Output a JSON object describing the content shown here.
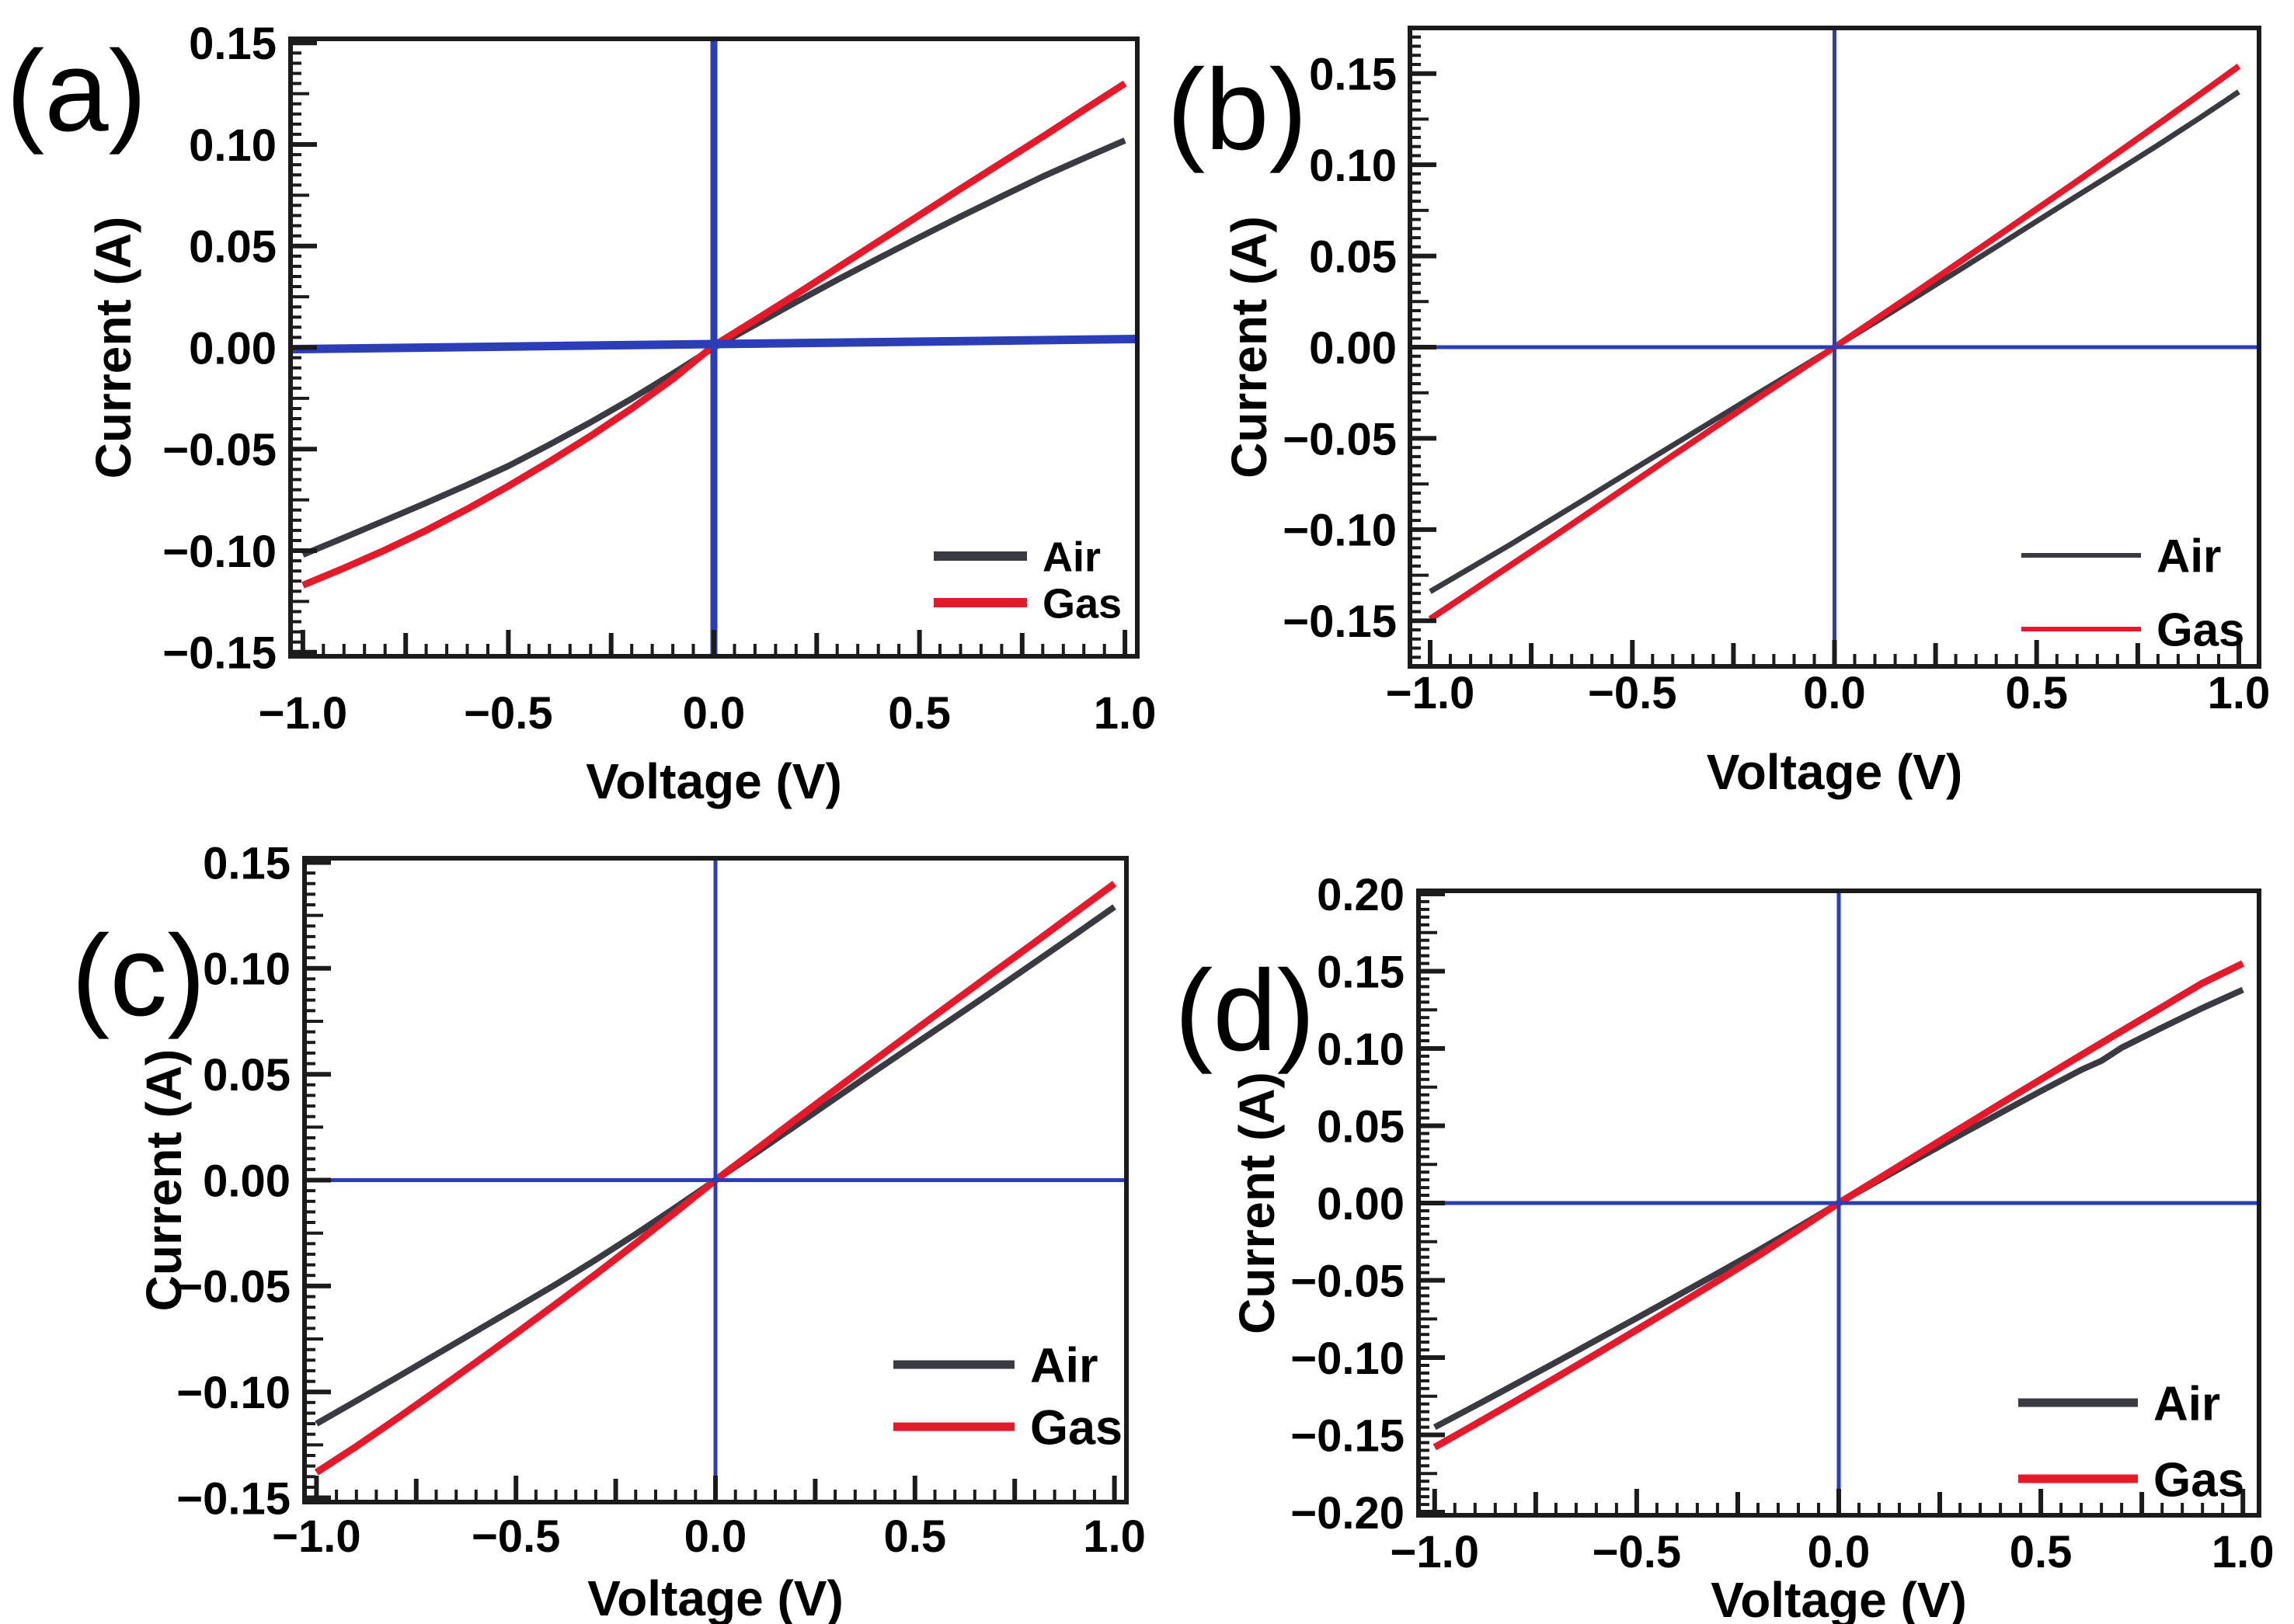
{
  "figure": {
    "background": "#ffffff",
    "colors": {
      "air": "#3a3a43",
      "gas": "#e6192b",
      "zero_line": "#2b3eb8",
      "frame": "#1b1b1b",
      "text": "#000000"
    }
  },
  "chart_data": [
    {
      "panel": "(a)",
      "type": "line",
      "xlabel": "Voltage (V)",
      "ylabel": "Current (A)",
      "xlim": [
        -1.0,
        1.0
      ],
      "ylim": [
        -0.15,
        0.15
      ],
      "x_ticks": [
        -1.0,
        -0.5,
        0.0,
        0.5,
        1.0
      ],
      "x_tick_labels": [
        "−1.0",
        "−0.5",
        "0.0",
        "0.5",
        "1.0"
      ],
      "y_ticks": [
        0.15,
        0.1,
        0.05,
        0.0,
        -0.05,
        -0.1,
        -0.15
      ],
      "y_tick_labels": [
        "0.15",
        "0.10",
        "0.05",
        "0.00",
        "−0.05",
        "−0.10",
        "−0.15"
      ],
      "zero_cross_lines": true,
      "legend_position": "lower right",
      "series": [
        {
          "name": "Air",
          "color_key": "air",
          "x": [
            -1.0,
            -0.9,
            -0.8,
            -0.7,
            -0.6,
            -0.5,
            -0.4,
            -0.3,
            -0.2,
            -0.1,
            0.0,
            0.1,
            0.2,
            0.3,
            0.4,
            0.5,
            0.6,
            0.7,
            0.8,
            0.9,
            1.0
          ],
          "y": [
            -0.102,
            -0.0936,
            -0.0851,
            -0.0765,
            -0.0676,
            -0.0583,
            -0.0478,
            -0.0368,
            -0.0252,
            -0.0128,
            0.0,
            0.0112,
            0.0224,
            0.0333,
            0.0439,
            0.0543,
            0.0645,
            0.0744,
            0.0842,
            0.0932,
            0.102
          ]
        },
        {
          "name": "Gas",
          "color_key": "gas",
          "x": [
            -1.0,
            -0.9,
            -0.8,
            -0.7,
            -0.6,
            -0.5,
            -0.4,
            -0.3,
            -0.2,
            -0.1,
            0.0,
            0.1,
            0.2,
            0.3,
            0.4,
            0.5,
            0.6,
            0.7,
            0.8,
            0.9,
            1.0
          ],
          "y": [
            -0.117,
            -0.1086,
            -0.0997,
            -0.09,
            -0.0795,
            -0.0682,
            -0.0562,
            -0.0435,
            -0.03,
            -0.0155,
            0.001,
            0.0135,
            0.0262,
            0.0392,
            0.0522,
            0.0652,
            0.0782,
            0.091,
            0.1038,
            0.117,
            0.13
          ]
        }
      ]
    },
    {
      "panel": "(b)",
      "type": "line",
      "xlabel": "Voltage (V)",
      "ylabel": "Current (A)",
      "xlim": [
        -1.0,
        1.0
      ],
      "ylim": [
        -0.175,
        0.175
      ],
      "x_ticks": [
        -1.0,
        -0.5,
        0.0,
        0.5,
        1.0
      ],
      "x_tick_labels": [
        "−1.0",
        "−0.5",
        "0.0",
        "0.5",
        "1.0"
      ],
      "y_ticks": [
        0.15,
        0.1,
        0.05,
        0.0,
        -0.05,
        -0.1,
        -0.15
      ],
      "y_tick_labels": [
        "0.15",
        "0.10",
        "0.05",
        "0.00",
        "−0.05",
        "−0.10",
        "−0.15"
      ],
      "zero_cross_lines": true,
      "legend_position": "lower right",
      "series": [
        {
          "name": "Air",
          "color_key": "air",
          "x": [
            -1.0,
            -0.9,
            -0.8,
            -0.7,
            -0.6,
            -0.5,
            -0.4,
            -0.3,
            -0.2,
            -0.1,
            0.0,
            0.1,
            0.2,
            0.3,
            0.4,
            0.5,
            0.6,
            0.7,
            0.8,
            0.9,
            1.0
          ],
          "y": [
            -0.134,
            -0.121,
            -0.108,
            -0.0945,
            -0.081,
            -0.0673,
            -0.0538,
            -0.0403,
            -0.0268,
            -0.0134,
            0.0,
            0.0136,
            0.0273,
            0.0411,
            0.055,
            0.069,
            0.083,
            0.0968,
            0.1108,
            0.1252,
            0.14
          ]
        },
        {
          "name": "Gas",
          "color_key": "gas",
          "x": [
            -1.0,
            -0.9,
            -0.8,
            -0.7,
            -0.6,
            -0.5,
            -0.4,
            -0.3,
            -0.2,
            -0.1,
            0.0,
            0.1,
            0.2,
            0.3,
            0.4,
            0.5,
            0.6,
            0.7,
            0.8,
            0.9,
            1.0
          ],
          "y": [
            -0.149,
            -0.1342,
            -0.1194,
            -0.1046,
            -0.0896,
            -0.0745,
            -0.0594,
            -0.0444,
            -0.0295,
            -0.0147,
            0.0,
            0.015,
            0.03,
            0.0452,
            0.0604,
            0.0757,
            0.091,
            0.1065,
            0.1222,
            0.138,
            0.154
          ]
        }
      ]
    },
    {
      "panel": "(c)",
      "type": "line",
      "xlabel": "Voltage (V)",
      "ylabel": "Current (A)",
      "xlim": [
        -1.0,
        1.0
      ],
      "ylim": [
        -0.15,
        0.15
      ],
      "x_ticks": [
        -1.0,
        -0.5,
        0.0,
        0.5,
        1.0
      ],
      "x_tick_labels": [
        "−1.0",
        "−0.5",
        "0.0",
        "0.5",
        "1.0"
      ],
      "y_ticks": [
        0.15,
        0.1,
        0.05,
        0.0,
        -0.05,
        -0.1,
        -0.15
      ],
      "y_tick_labels": [
        "0.15",
        "0.10",
        "0.05",
        "0.00",
        "−0.05",
        "−0.10",
        "−0.15"
      ],
      "zero_cross_lines": true,
      "legend_position": "lower right",
      "series": [
        {
          "name": "Air",
          "color_key": "air",
          "x": [
            -1.0,
            -0.9,
            -0.8,
            -0.7,
            -0.6,
            -0.5,
            -0.4,
            -0.3,
            -0.2,
            -0.1,
            0.0,
            0.1,
            0.2,
            0.3,
            0.4,
            0.5,
            0.6,
            0.7,
            0.8,
            0.9,
            1.0
          ],
          "y": [
            -0.115,
            -0.1042,
            -0.0933,
            -0.0823,
            -0.0713,
            -0.0603,
            -0.0492,
            -0.0376,
            -0.0255,
            -0.0129,
            0.0,
            0.0127,
            0.0256,
            0.0386,
            0.0515,
            0.0643,
            0.077,
            0.0898,
            0.1028,
            0.1158,
            0.129
          ]
        },
        {
          "name": "Gas",
          "color_key": "gas",
          "x": [
            -1.0,
            -0.9,
            -0.8,
            -0.7,
            -0.6,
            -0.5,
            -0.4,
            -0.3,
            -0.2,
            -0.1,
            0.0,
            0.1,
            0.2,
            0.3,
            0.4,
            0.5,
            0.6,
            0.7,
            0.8,
            0.9,
            1.0
          ],
          "y": [
            -0.138,
            -0.1257,
            -0.1128,
            -0.0995,
            -0.086,
            -0.0724,
            -0.0585,
            -0.0444,
            -0.0299,
            -0.0151,
            0.0,
            0.0142,
            0.0285,
            0.0427,
            0.0568,
            0.0708,
            0.0847,
            0.0985,
            0.1122,
            0.1261,
            0.14
          ]
        }
      ]
    },
    {
      "panel": "(d)",
      "type": "line",
      "xlabel": "Voltage (V)",
      "ylabel": "Current (A)",
      "xlim": [
        -1.0,
        1.0
      ],
      "ylim": [
        -0.2,
        0.2
      ],
      "x_ticks": [
        -1.0,
        -0.5,
        0.0,
        0.5,
        1.0
      ],
      "x_tick_labels": [
        "−1.0",
        "−0.5",
        "0.0",
        "0.5",
        "1.0"
      ],
      "y_ticks": [
        0.2,
        0.15,
        0.1,
        0.05,
        0.0,
        -0.05,
        -0.1,
        -0.15,
        -0.2
      ],
      "y_tick_labels": [
        "0.20",
        "0.15",
        "0.10",
        "0.05",
        "0.00",
        "−0.05",
        "−0.10",
        "−0.15",
        "−0.20"
      ],
      "zero_cross_lines": true,
      "legend_position": "lower right",
      "series": [
        {
          "name": "Air",
          "color_key": "air",
          "x": [
            -1.0,
            -0.9,
            -0.8,
            -0.7,
            -0.6,
            -0.5,
            -0.4,
            -0.3,
            -0.2,
            -0.1,
            0.0,
            0.1,
            0.2,
            0.3,
            0.4,
            0.5,
            0.6,
            0.65,
            0.7,
            0.8,
            0.9,
            1.0
          ],
          "y": [
            -0.145,
            -0.1312,
            -0.1172,
            -0.103,
            -0.0887,
            -0.0744,
            -0.06,
            -0.0455,
            -0.0308,
            -0.0156,
            0.0,
            0.0148,
            0.0295,
            0.044,
            0.0583,
            0.0724,
            0.0862,
            0.092,
            0.1005,
            0.1135,
            0.1262,
            0.138
          ]
        },
        {
          "name": "Gas",
          "color_key": "gas",
          "x": [
            -1.0,
            -0.9,
            -0.8,
            -0.7,
            -0.6,
            -0.5,
            -0.4,
            -0.3,
            -0.2,
            -0.1,
            0.0,
            0.1,
            0.2,
            0.3,
            0.4,
            0.5,
            0.6,
            0.7,
            0.8,
            0.9,
            1.0
          ],
          "y": [
            -0.158,
            -0.1432,
            -0.1282,
            -0.113,
            -0.0976,
            -0.082,
            -0.0663,
            -0.0504,
            -0.0342,
            -0.0173,
            0.0,
            0.016,
            0.0321,
            0.0482,
            0.0642,
            0.08,
            0.0957,
            0.1113,
            0.1268,
            0.1423,
            0.155
          ]
        }
      ]
    }
  ]
}
